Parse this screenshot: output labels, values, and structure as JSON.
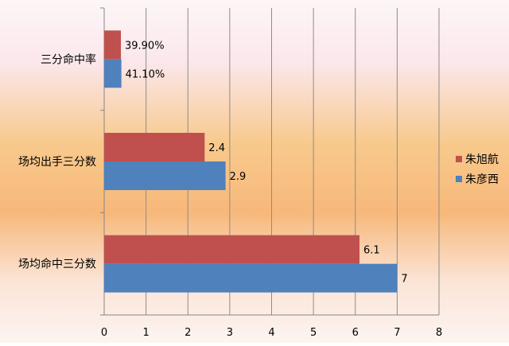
{
  "chart_data": {
    "type": "bar",
    "orientation": "horizontal",
    "categories": [
      "三分命中率",
      "场均出手三分数",
      "场均命中三分数"
    ],
    "series": [
      {
        "name": "朱旭航",
        "color": "#C0504D",
        "values": [
          0.399,
          2.4,
          6.1
        ],
        "labels": [
          "39.90%",
          "2.4",
          "6.1"
        ]
      },
      {
        "name": "朱彦西",
        "color": "#4F81BD",
        "values": [
          0.411,
          2.9,
          7
        ],
        "labels": [
          "41.10%",
          "2.9",
          "7"
        ]
      }
    ],
    "xlim": [
      0,
      8
    ],
    "xticks": [
      "0",
      "1",
      "2",
      "3",
      "4",
      "5",
      "6",
      "7",
      "8"
    ],
    "grid": true,
    "legend": "right",
    "title": "",
    "xlabel": "",
    "ylabel": ""
  }
}
